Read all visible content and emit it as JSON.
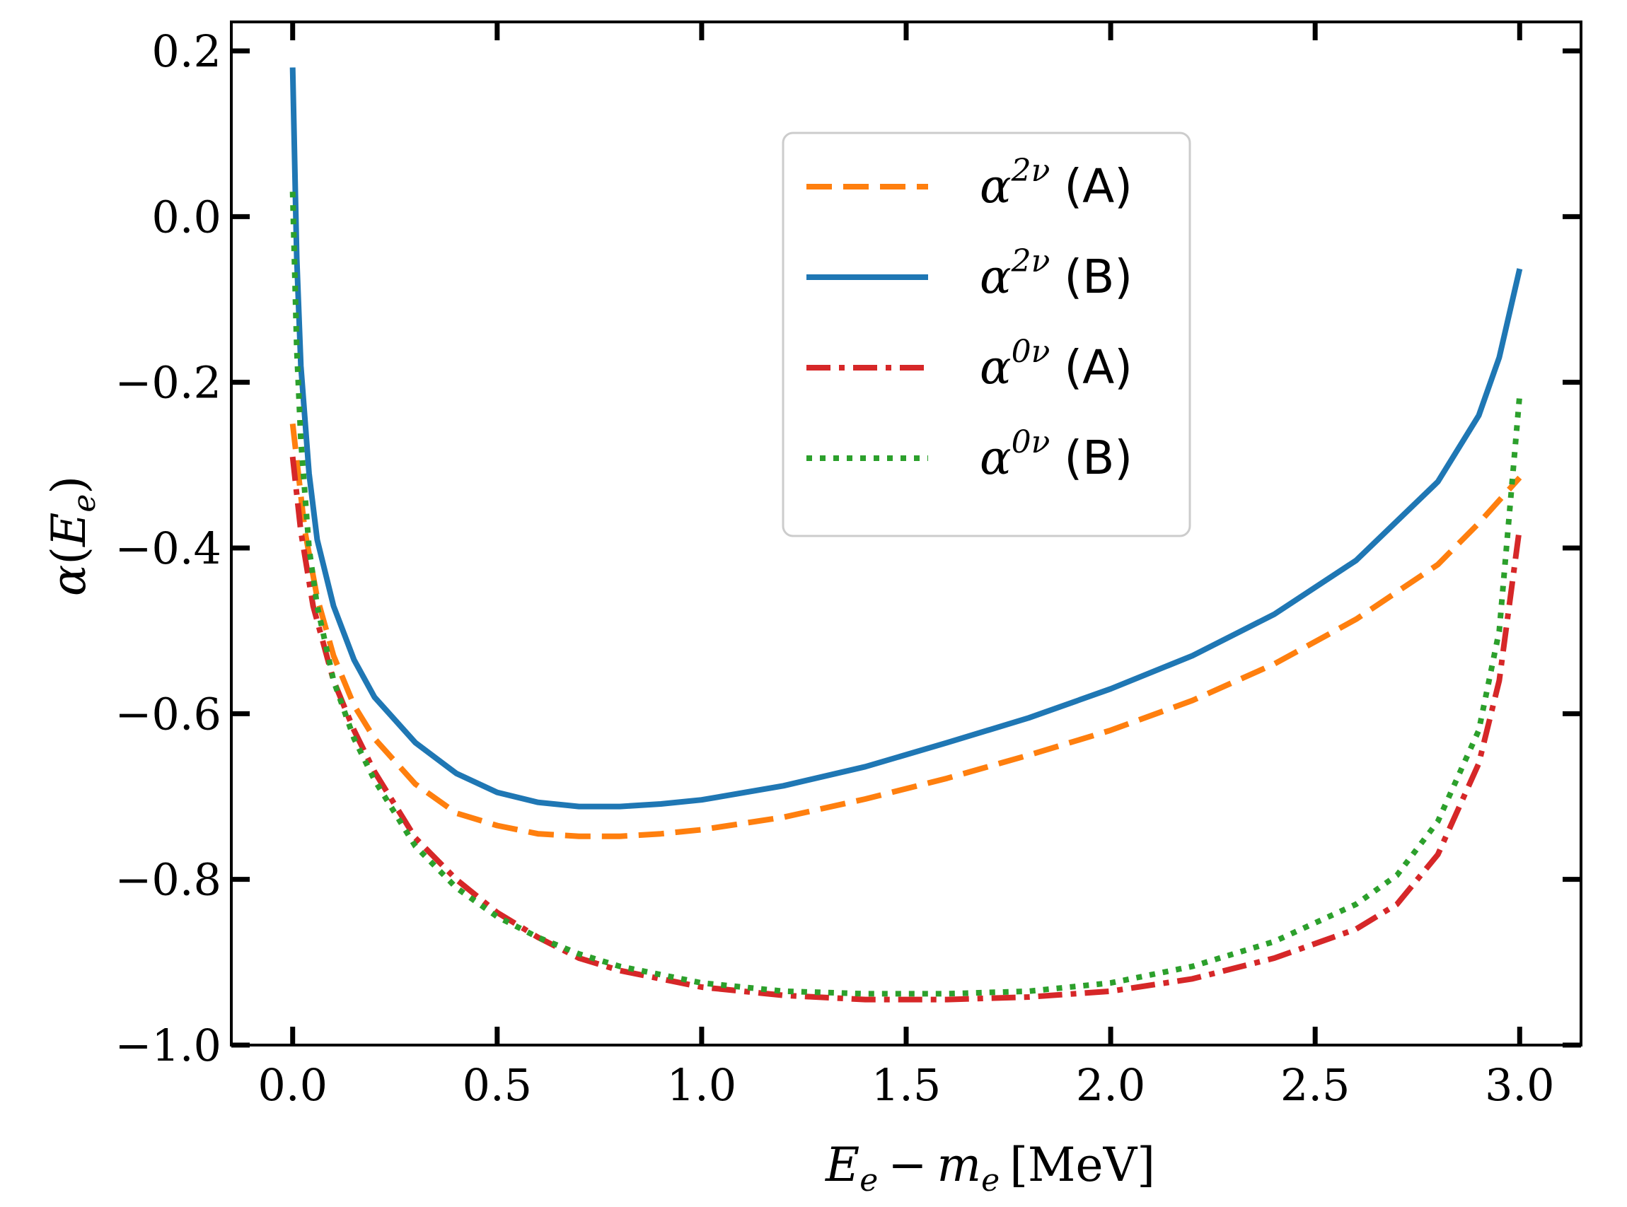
{
  "chart_data": {
    "type": "line",
    "xlabel": "E_e − m_e [MeV]",
    "xlabel_parts": {
      "E": "E",
      "e_sub": "e",
      "minus": "−",
      "m": "m",
      "m_sub": "e",
      "units": "[MeV]"
    },
    "ylabel": "α(E_e)",
    "ylabel_parts": {
      "alpha": "α",
      "open": "(",
      "E": "E",
      "e_sub": "e",
      "close": ")"
    },
    "xlim": [
      -0.15,
      3.15
    ],
    "ylim": [
      -1.0,
      0.235
    ],
    "x_ticks": [
      0.0,
      0.5,
      1.0,
      1.5,
      2.0,
      2.5,
      3.0
    ],
    "x_tick_labels": [
      "0.0",
      "0.5",
      "1.0",
      "1.5",
      "2.0",
      "2.5",
      "3.0"
    ],
    "y_ticks": [
      0.2,
      0.0,
      -0.2,
      -0.4,
      -0.6,
      -0.8,
      -1.0
    ],
    "y_tick_labels": [
      "0.2",
      "0.0",
      "−0.2",
      "−0.4",
      "−0.6",
      "−0.8",
      "−1.0"
    ],
    "grid": false,
    "legend_position": "upper-center",
    "series": [
      {
        "name": "α^{2ν} (A)",
        "legend": {
          "base": "α",
          "sup": "2ν",
          "tag": "(A)"
        },
        "color": "#ff7f0e",
        "style": "dashed",
        "x": [
          0.0,
          0.03,
          0.06,
          0.1,
          0.15,
          0.2,
          0.3,
          0.4,
          0.5,
          0.6,
          0.7,
          0.8,
          0.9,
          1.0,
          1.2,
          1.4,
          1.6,
          1.8,
          2.0,
          2.2,
          2.4,
          2.6,
          2.8,
          2.9,
          3.0
        ],
        "y": [
          -0.25,
          -0.38,
          -0.46,
          -0.53,
          -0.59,
          -0.63,
          -0.685,
          -0.72,
          -0.735,
          -0.745,
          -0.748,
          -0.748,
          -0.745,
          -0.74,
          -0.725,
          -0.703,
          -0.678,
          -0.65,
          -0.62,
          -0.584,
          -0.54,
          -0.486,
          -0.42,
          -0.37,
          -0.315
        ]
      },
      {
        "name": "α^{2ν} (B)",
        "legend": {
          "base": "α",
          "sup": "2ν",
          "tag": "(B)"
        },
        "color": "#1f77b4",
        "style": "solid",
        "x": [
          0.0,
          0.01,
          0.02,
          0.04,
          0.06,
          0.1,
          0.15,
          0.2,
          0.3,
          0.4,
          0.5,
          0.6,
          0.7,
          0.8,
          0.9,
          1.0,
          1.2,
          1.4,
          1.6,
          1.8,
          2.0,
          2.2,
          2.4,
          2.6,
          2.8,
          2.9,
          2.95,
          3.0
        ],
        "y": [
          0.18,
          -0.05,
          -0.18,
          -0.31,
          -0.39,
          -0.47,
          -0.535,
          -0.58,
          -0.635,
          -0.672,
          -0.695,
          -0.707,
          -0.712,
          -0.712,
          -0.709,
          -0.704,
          -0.687,
          -0.664,
          -0.635,
          -0.605,
          -0.57,
          -0.53,
          -0.48,
          -0.415,
          -0.32,
          -0.24,
          -0.17,
          -0.063
        ]
      },
      {
        "name": "α^{0ν} (A)",
        "legend": {
          "base": "α",
          "sup": "0ν",
          "tag": "(A)"
        },
        "color": "#d62728",
        "style": "dashdot",
        "x": [
          0.0,
          0.02,
          0.05,
          0.1,
          0.15,
          0.2,
          0.3,
          0.4,
          0.5,
          0.6,
          0.7,
          0.8,
          1.0,
          1.2,
          1.4,
          1.6,
          1.8,
          2.0,
          2.2,
          2.4,
          2.6,
          2.7,
          2.8,
          2.9,
          2.95,
          3.0
        ],
        "y": [
          -0.29,
          -0.38,
          -0.47,
          -0.56,
          -0.62,
          -0.67,
          -0.75,
          -0.8,
          -0.84,
          -0.87,
          -0.895,
          -0.91,
          -0.93,
          -0.94,
          -0.945,
          -0.945,
          -0.942,
          -0.935,
          -0.92,
          -0.895,
          -0.86,
          -0.83,
          -0.77,
          -0.66,
          -0.56,
          -0.375
        ]
      },
      {
        "name": "α^{0ν} (B)",
        "legend": {
          "base": "α",
          "sup": "0ν",
          "tag": "(B)"
        },
        "color": "#2ca02c",
        "style": "dotted",
        "x": [
          0.0,
          0.01,
          0.02,
          0.04,
          0.06,
          0.1,
          0.15,
          0.2,
          0.3,
          0.4,
          0.5,
          0.6,
          0.7,
          0.8,
          1.0,
          1.2,
          1.4,
          1.6,
          1.8,
          2.0,
          2.2,
          2.4,
          2.6,
          2.7,
          2.8,
          2.9,
          2.95,
          3.0
        ],
        "y": [
          0.03,
          -0.16,
          -0.27,
          -0.4,
          -0.47,
          -0.56,
          -0.63,
          -0.68,
          -0.76,
          -0.81,
          -0.845,
          -0.87,
          -0.89,
          -0.905,
          -0.925,
          -0.935,
          -0.938,
          -0.938,
          -0.935,
          -0.925,
          -0.905,
          -0.875,
          -0.83,
          -0.795,
          -0.73,
          -0.62,
          -0.5,
          -0.215
        ]
      }
    ]
  }
}
